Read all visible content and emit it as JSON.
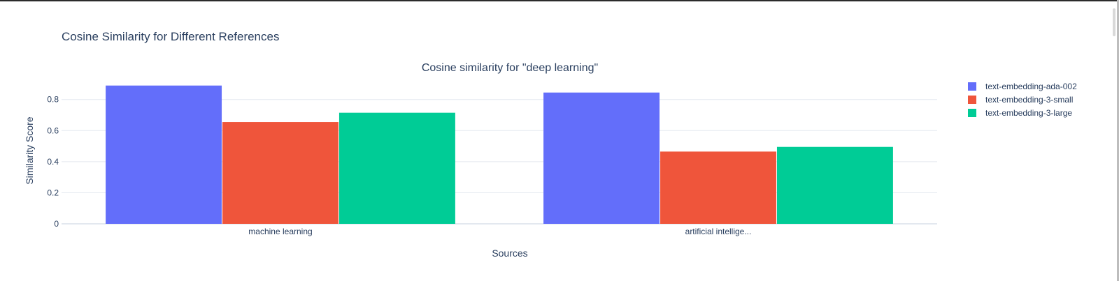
{
  "figure": {
    "title": "Cosine Similarity for Different References"
  },
  "chart_data": {
    "type": "bar",
    "title": "Cosine similarity for \"deep learning\"",
    "xlabel": "Sources",
    "ylabel": "Similarity Score",
    "categories": [
      "machine learning",
      "artificial intellige..."
    ],
    "series": [
      {
        "name": "text-embedding-ada-002",
        "color": "#636efa",
        "values": [
          0.89,
          0.845
        ]
      },
      {
        "name": "text-embedding-3-small",
        "color": "#ef553b",
        "values": [
          0.655,
          0.465
        ]
      },
      {
        "name": "text-embedding-3-large",
        "color": "#00cc96",
        "values": [
          0.715,
          0.495
        ]
      }
    ],
    "ylim": [
      0,
      0.92
    ],
    "yticks": [
      0,
      0.2,
      0.4,
      0.6,
      0.8
    ],
    "ytick_labels": [
      "0",
      "0.2",
      "0.4",
      "0.6",
      "0.8"
    ],
    "grid": true,
    "legend_position": "right"
  }
}
